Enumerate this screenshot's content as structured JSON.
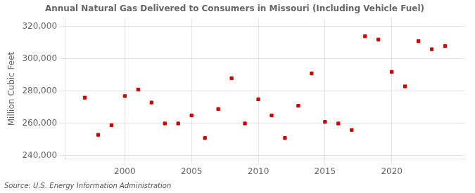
{
  "chart_data": {
    "type": "scatter",
    "title": "Annual Natural Gas Delivered to Consumers in Missouri (Including Vehicle Fuel)",
    "ylabel": "Million Cubic Feet",
    "source": "Source: U.S. Energy Information Administration",
    "x": [
      1997,
      1998,
      1999,
      2000,
      2001,
      2002,
      2003,
      2004,
      2005,
      2006,
      2007,
      2008,
      2009,
      2010,
      2011,
      2012,
      2013,
      2014,
      2015,
      2016,
      2017,
      2018,
      2019,
      2020,
      2021,
      2022,
      2023,
      2024
    ],
    "values": [
      276000,
      253000,
      259000,
      277000,
      281000,
      273000,
      260000,
      260000,
      265000,
      251000,
      269000,
      288000,
      260000,
      275000,
      265000,
      251000,
      271000,
      291000,
      261000,
      260000,
      256000,
      314000,
      312000,
      292000,
      283000,
      311000,
      306000,
      308000
    ],
    "color": "#cc0000",
    "marker": "square",
    "xlim": [
      1995.5,
      2025.5
    ],
    "xticks": [
      2000,
      2005,
      2010,
      2015,
      2020
    ],
    "ylim": [
      238000,
      325000
    ],
    "yticks": [
      {
        "value": 240000,
        "label": "240,000"
      },
      {
        "value": 260000,
        "label": "260,000"
      },
      {
        "value": 280000,
        "label": "280,000"
      },
      {
        "value": 300000,
        "label": "300,000"
      },
      {
        "value": 320000,
        "label": "320,000"
      }
    ],
    "grid": true
  }
}
